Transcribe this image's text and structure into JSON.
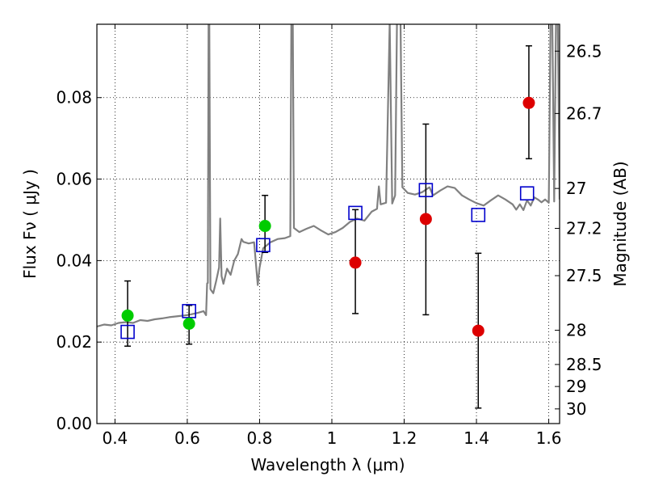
{
  "chart_data": {
    "type": "scatter",
    "xlabel": "Wavelength  λ (μm)",
    "ylabel": "Flux  Fν  ( μJy )",
    "ylabel_right": "Magnitude (AB)",
    "xlim": [
      0.35,
      1.63
    ],
    "ylim": [
      0.0,
      0.098
    ],
    "grid": true,
    "x_ticks": [
      {
        "value": 0.4,
        "label": "0.4"
      },
      {
        "value": 0.6,
        "label": "0.6"
      },
      {
        "value": 0.8,
        "label": "0.8"
      },
      {
        "value": 1.0,
        "label": "1"
      },
      {
        "value": 1.2,
        "label": "1.2"
      },
      {
        "value": 1.4,
        "label": "1.4"
      },
      {
        "value": 1.6,
        "label": "1.6"
      }
    ],
    "y_ticks": [
      {
        "value": 0.0,
        "label": "0.00"
      },
      {
        "value": 0.02,
        "label": "0.02"
      },
      {
        "value": 0.04,
        "label": "0.04"
      },
      {
        "value": 0.06,
        "label": "0.06"
      },
      {
        "value": 0.08,
        "label": "0.08"
      }
    ],
    "right_ticks": [
      {
        "flux": 0.0914,
        "label": "26.5"
      },
      {
        "flux": 0.0761,
        "label": "26.7"
      },
      {
        "flux": 0.0577,
        "label": "27"
      },
      {
        "flux": 0.0479,
        "label": "27.2"
      },
      {
        "flux": 0.0363,
        "label": "27.5"
      },
      {
        "flux": 0.0229,
        "label": "28"
      },
      {
        "flux": 0.0145,
        "label": "28.5"
      },
      {
        "flux": 0.0091,
        "label": "29"
      },
      {
        "flux": 0.0036,
        "label": "30"
      }
    ],
    "series": [
      {
        "kind": "spectrum",
        "color": "#808080",
        "points": [
          [
            0.35,
            0.0238
          ],
          [
            0.37,
            0.0243
          ],
          [
            0.39,
            0.0241
          ],
          [
            0.41,
            0.0247
          ],
          [
            0.43,
            0.0249
          ],
          [
            0.45,
            0.0247
          ],
          [
            0.47,
            0.0254
          ],
          [
            0.49,
            0.0252
          ],
          [
            0.51,
            0.0256
          ],
          [
            0.53,
            0.0258
          ],
          [
            0.55,
            0.0261
          ],
          [
            0.57,
            0.0263
          ],
          [
            0.59,
            0.0265
          ],
          [
            0.61,
            0.0268
          ],
          [
            0.63,
            0.0272
          ],
          [
            0.645,
            0.0276
          ],
          [
            0.652,
            0.0266
          ],
          [
            0.655,
            0.0344
          ],
          [
            0.657,
            0.0345
          ],
          [
            0.659,
            0.0985
          ],
          [
            0.661,
            0.0985
          ],
          [
            0.664,
            0.033
          ],
          [
            0.672,
            0.032
          ],
          [
            0.68,
            0.035
          ],
          [
            0.688,
            0.0383
          ],
          [
            0.691,
            0.0503
          ],
          [
            0.695,
            0.0362
          ],
          [
            0.7,
            0.0343
          ],
          [
            0.71,
            0.038
          ],
          [
            0.72,
            0.0365
          ],
          [
            0.73,
            0.04
          ],
          [
            0.74,
            0.0416
          ],
          [
            0.75,
            0.0453
          ],
          [
            0.755,
            0.0446
          ],
          [
            0.77,
            0.0442
          ],
          [
            0.785,
            0.0445
          ],
          [
            0.795,
            0.034
          ],
          [
            0.8,
            0.0382
          ],
          [
            0.81,
            0.043
          ],
          [
            0.83,
            0.0445
          ],
          [
            0.85,
            0.0453
          ],
          [
            0.87,
            0.0455
          ],
          [
            0.885,
            0.046
          ],
          [
            0.888,
            0.0985
          ],
          [
            0.892,
            0.0985
          ],
          [
            0.895,
            0.048
          ],
          [
            0.91,
            0.047
          ],
          [
            0.93,
            0.0478
          ],
          [
            0.95,
            0.0485
          ],
          [
            0.97,
            0.0474
          ],
          [
            0.99,
            0.0464
          ],
          [
            1.01,
            0.047
          ],
          [
            1.03,
            0.048
          ],
          [
            1.05,
            0.0495
          ],
          [
            1.07,
            0.0503
          ],
          [
            1.09,
            0.0498
          ],
          [
            1.11,
            0.052
          ],
          [
            1.125,
            0.0527
          ],
          [
            1.13,
            0.0582
          ],
          [
            1.135,
            0.0538
          ],
          [
            1.15,
            0.0542
          ],
          [
            1.16,
            0.0985
          ],
          [
            1.167,
            0.054
          ],
          [
            1.175,
            0.056
          ],
          [
            1.18,
            0.0985
          ],
          [
            1.185,
            0.0985
          ],
          [
            1.19,
            0.0985
          ],
          [
            1.195,
            0.058
          ],
          [
            1.21,
            0.0566
          ],
          [
            1.23,
            0.0562
          ],
          [
            1.25,
            0.0568
          ],
          [
            1.27,
            0.058
          ],
          [
            1.28,
            0.056
          ],
          [
            1.3,
            0.0572
          ],
          [
            1.32,
            0.0582
          ],
          [
            1.34,
            0.0578
          ],
          [
            1.36,
            0.056
          ],
          [
            1.38,
            0.055
          ],
          [
            1.4,
            0.0541
          ],
          [
            1.42,
            0.0535
          ],
          [
            1.44,
            0.0548
          ],
          [
            1.46,
            0.056
          ],
          [
            1.48,
            0.055
          ],
          [
            1.5,
            0.0538
          ],
          [
            1.51,
            0.0525
          ],
          [
            1.52,
            0.0538
          ],
          [
            1.53,
            0.0524
          ],
          [
            1.54,
            0.0548
          ],
          [
            1.55,
            0.0535
          ],
          [
            1.56,
            0.0555
          ],
          [
            1.57,
            0.055
          ],
          [
            1.58,
            0.0543
          ],
          [
            1.59,
            0.055
          ],
          [
            1.6,
            0.0542
          ],
          [
            1.605,
            0.0985
          ],
          [
            1.61,
            0.0985
          ],
          [
            1.615,
            0.0545
          ],
          [
            1.62,
            0.0985
          ],
          [
            1.625,
            0.0985
          ],
          [
            1.63,
            0.055
          ]
        ]
      },
      {
        "kind": "model",
        "marker": "open-square",
        "color": "#0000cc",
        "x": [
          0.435,
          0.605,
          0.81,
          1.065,
          1.26,
          1.405,
          1.54
        ],
        "y": [
          0.0225,
          0.0276,
          0.0438,
          0.0517,
          0.0573,
          0.0512,
          0.0565
        ]
      },
      {
        "kind": "detection",
        "marker": "filled-circle",
        "color": "#00cc00",
        "x": [
          0.435,
          0.605,
          0.815
        ],
        "y": [
          0.0265,
          0.0245,
          0.0485
        ],
        "err_low": [
          0.0075,
          0.005,
          0.0065
        ],
        "err_high": [
          0.0085,
          0.0045,
          0.0075
        ]
      },
      {
        "kind": "measurement",
        "marker": "filled-circle",
        "color": "#dd0000",
        "x": [
          1.065,
          1.26,
          1.405,
          1.545
        ],
        "y": [
          0.0395,
          0.0502,
          0.0228,
          0.0787
        ],
        "err_low": [
          0.0125,
          0.0235,
          0.019,
          0.0137
        ],
        "err_high": [
          0.013,
          0.0233,
          0.019,
          0.014
        ]
      }
    ]
  }
}
